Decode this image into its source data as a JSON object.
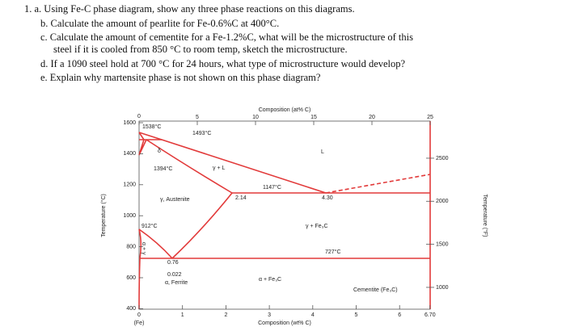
{
  "questions": [
    "1.  a. Using Fe-C phase diagram, show any three phase reactions on this diagrams.",
    "b.  Calculate the amount of pearlite for Fe-0.6%C at 400°C.",
    "c.  Calculate the amount of cementite for a Fe-1.2%C, what will be the microstructure of this",
    "steel if it is cooled from 850 °C to room temp, sketch the microstructure.",
    "d.  If a 1090 steel hold at 700 °C for 24 hours, what type of microstructure would develop?",
    "e.  Explain why martensite phase is not shown on this phase diagram?"
  ],
  "diagram": {
    "top_axis_title": "Composition (at% C)",
    "bottom_axis_title": "Composition (wt% C)",
    "left_axis_title": "Temperature (°C)",
    "right_axis_title": "Temperature (°F)",
    "top_ticks": [
      "0",
      "5",
      "10",
      "15",
      "20",
      "25"
    ],
    "bottom_ticks": [
      "0",
      "1",
      "2",
      "3",
      "4",
      "5",
      "6",
      "6.70"
    ],
    "bottom_origin_label": "(Fe)",
    "left_ticks": [
      "1600",
      "1400",
      "1200",
      "1000",
      "800",
      "600",
      "400"
    ],
    "right_ticks": [
      "2500",
      "2000",
      "1500",
      "1000"
    ],
    "labels": [
      "1538°C",
      "1493°C",
      "δ",
      "1394°C",
      "γ + L",
      "L",
      "1147°C",
      "2.14",
      "4.30",
      "γ, Austenite",
      "912°C",
      "γ + Fe₃C",
      "727°C",
      "0.76",
      "0.022",
      "α, Ferrite",
      "α + Fe₃C",
      "Cementite (Fe₃C)",
      "α + γ"
    ]
  }
}
